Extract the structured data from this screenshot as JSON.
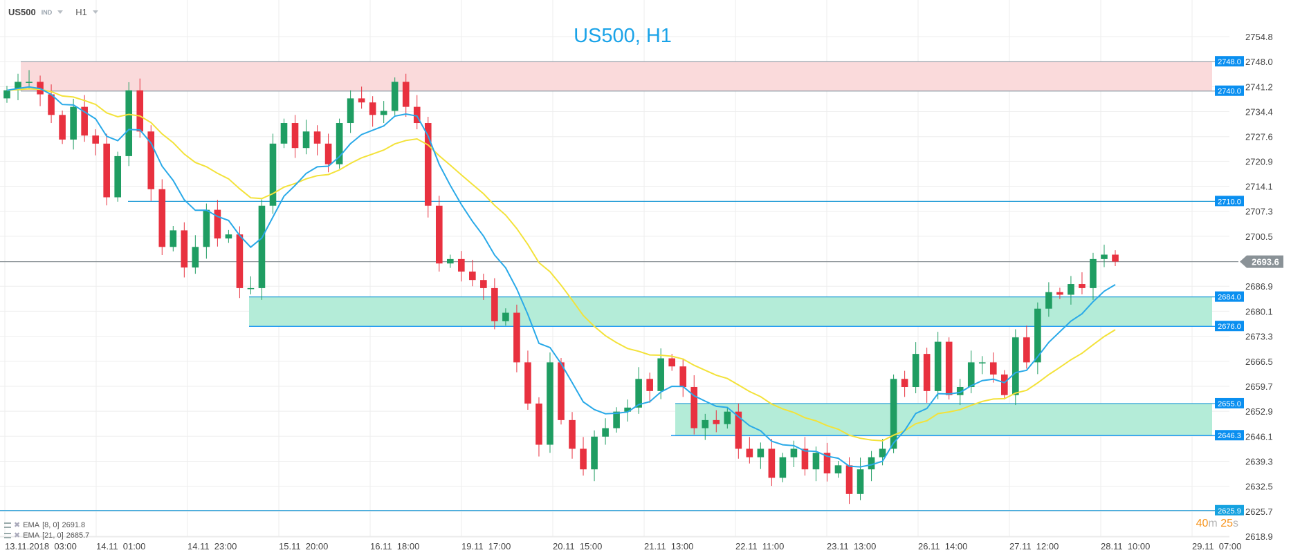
{
  "header": {
    "symbol": "US500",
    "market": "IND",
    "timeframe": "H1"
  },
  "legend": [
    {
      "label": "EMA",
      "params": "[8, 0]",
      "value": "2691.8",
      "color": "#29a9e8"
    },
    {
      "label": "EMA",
      "params": "[21, 0]",
      "value": "2685.7",
      "color": "#f3e23a"
    }
  ],
  "countdown": {
    "minutes": "40",
    "m": "m",
    "seconds": "25",
    "s": "s"
  },
  "colors": {
    "up": "#1f9d62",
    "down": "#e8313f",
    "ema_fast": "#29a9e8",
    "ema_slow": "#f3e23a",
    "level_label": "#0a8ff0",
    "resistance_zone": "#fadadb",
    "support_zone": "#b4ecd8",
    "current_price": "#8a9297"
  },
  "chart_data": {
    "type": "candlestick",
    "title": "US500, H1",
    "ylim": [
      2618.9,
      2754.8
    ],
    "y_ticks": [
      "2754.8",
      "2748.0",
      "2741.2",
      "2734.4",
      "2727.6",
      "2720.9",
      "2714.1",
      "2707.3",
      "2700.5",
      "2693.6",
      "2686.9",
      "2680.1",
      "2673.3",
      "2666.5",
      "2659.7",
      "2652.9",
      "2646.1",
      "2639.3",
      "2632.5",
      "2625.7",
      "2618.9"
    ],
    "x_ticks": [
      "13.11.2018  03:00",
      "14.11  01:00",
      "14.11  23:00",
      "15.11  20:00",
      "16.11  18:00",
      "19.11  17:00",
      "20.11  15:00",
      "21.11  13:00",
      "22.11  11:00",
      "23.11  13:00",
      "26.11  14:00",
      "27.11  12:00",
      "28.11  10:00",
      "29.11  07:00"
    ],
    "grid": true,
    "first_open": 2738.0,
    "closes": [
      2740.2,
      2742.5,
      2742.5,
      2739.1,
      2733.5,
      2726.8,
      2735.7,
      2727.9,
      2725.7,
      2711.1,
      2722.3,
      2740.2,
      2729.0,
      2713.3,
      2697.6,
      2702.1,
      2692.0,
      2697.6,
      2707.7,
      2699.9,
      2701.0,
      2686.4,
      2686.4,
      2708.8,
      2725.7,
      2731.3,
      2724.5,
      2729.0,
      2725.7,
      2720.1,
      2731.3,
      2738.0,
      2736.9,
      2733.5,
      2734.6,
      2742.5,
      2735.7,
      2731.3,
      2708.8,
      2693.1,
      2694.3,
      2690.9,
      2688.6,
      2686.4,
      2677.4,
      2679.7,
      2666.2,
      2655.0,
      2643.8,
      2666.2,
      2650.5,
      2642.7,
      2637.1,
      2646.0,
      2648.3,
      2652.8,
      2653.9,
      2661.7,
      2658.4,
      2667.3,
      2665.1,
      2659.5,
      2648.3,
      2650.5,
      2649.4,
      2652.8,
      2642.7,
      2640.4,
      2642.7,
      2634.8,
      2640.4,
      2642.7,
      2637.1,
      2641.6,
      2636.0,
      2638.2,
      2630.4,
      2637.1,
      2640.4,
      2642.7,
      2661.7,
      2659.5,
      2668.5,
      2658.4,
      2671.8,
      2657.3,
      2659.5,
      2666.2,
      2666.2,
      2662.9,
      2657.3,
      2673.0,
      2666.2,
      2680.8,
      2685.3,
      2684.6,
      2687.5,
      2686.4,
      2694.3,
      2695.5,
      2693.6
    ],
    "indicators": [
      {
        "type": "EMA",
        "period": 8
      },
      {
        "type": "EMA",
        "period": 21
      }
    ],
    "zones": [
      {
        "kind": "resistance",
        "top": 2748.0,
        "bottom": 2740.0,
        "top_label": "2748.0",
        "bottom_label": "2740.0"
      },
      {
        "kind": "support",
        "top": 2684.0,
        "bottom": 2676.0,
        "top_label": "2684.0",
        "bottom_label": "2676.0"
      },
      {
        "kind": "support",
        "top": 2655.0,
        "bottom": 2646.3,
        "top_label": "2655.0",
        "bottom_label": "2646.3"
      }
    ],
    "levels": [
      {
        "value": 2710.0,
        "label": "2710.0"
      },
      {
        "value": 2625.9,
        "label": "2625.9"
      }
    ],
    "current_price": {
      "value": 2693.6,
      "label": "2693.6"
    }
  }
}
